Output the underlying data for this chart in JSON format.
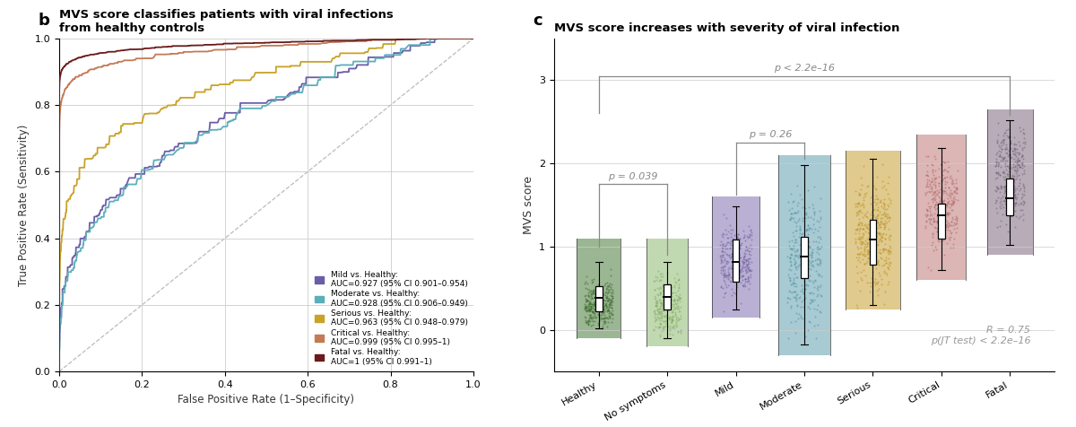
{
  "panel_b": {
    "title": "MVS score classifies patients with viral infections\nfrom healthy controls",
    "xlabel": "False Positive Rate (1–Specificity)",
    "ylabel": "True Positive Rate (Sensitivity)",
    "curves": [
      {
        "label": "Mild vs. Healthy:\nAUC=0.927 (95% CI 0.901–0.954)",
        "color": "#6B5EA8",
        "shape_power": 3.0
      },
      {
        "label": "Moderate vs. Healthy:\nAUC=0.928 (95% CI 0.906–0.949)",
        "color": "#5BAFBA",
        "shape_power": 2.9
      },
      {
        "label": "Serious vs. Healthy:\nAUC=0.963 (95% CI 0.948–0.979)",
        "color": "#C9A227",
        "shape_power": 5.5
      },
      {
        "label": "Critical vs. Healthy:\nAUC=0.999 (95% CI 0.995–1)",
        "color": "#C47A55",
        "shape_power": 25.0
      },
      {
        "label": "Fatal vs. Healthy:\nAUC=1 (95% CI 0.991–1)",
        "color": "#6B1A1A",
        "shape_power": 50.0
      }
    ]
  },
  "panel_c": {
    "title": "MVS score increases with severity of viral infection",
    "ylabel": "MVS score",
    "categories": [
      "Healthy",
      "No symptoms",
      "Mild",
      "Moderate",
      "Serious",
      "Critical",
      "Fatal"
    ],
    "violin_colors": [
      "#4A7A3A",
      "#8FBB70",
      "#8070B0",
      "#60A0B0",
      "#C8A030",
      "#C07878",
      "#806880"
    ],
    "dot_colors": [
      "#3A6A2A",
      "#7FAB60",
      "#7060A0",
      "#5090A0",
      "#B89020",
      "#B06868",
      "#706070"
    ],
    "violin_alpha": 0.55,
    "medians": [
      0.38,
      0.4,
      0.82,
      0.88,
      1.08,
      1.38,
      1.58
    ],
    "q1": [
      0.22,
      0.25,
      0.58,
      0.62,
      0.78,
      1.1,
      1.38
    ],
    "q3": [
      0.52,
      0.55,
      1.08,
      1.12,
      1.32,
      1.52,
      1.82
    ],
    "whisker_low": [
      0.02,
      -0.1,
      0.25,
      -0.18,
      0.3,
      0.72,
      1.02
    ],
    "whisker_high": [
      0.82,
      0.82,
      1.48,
      1.98,
      2.05,
      2.18,
      2.52
    ],
    "stat_text": "R = 0.75\np(JT test) < 2.2e–16",
    "bracket_p_all": "p < 2.2e–16",
    "bracket_p_mild_mod": "p = 0.26",
    "bracket_p_healthy_nosymp": "p = 0.039",
    "ylim": [
      -0.5,
      3.5
    ],
    "yticks": [
      0,
      1,
      2,
      3
    ]
  },
  "bg_color": "#ffffff",
  "axis_color": "#333333",
  "grid_color": "#cccccc",
  "bracket_color": "#888888",
  "stat_color": "#999999"
}
